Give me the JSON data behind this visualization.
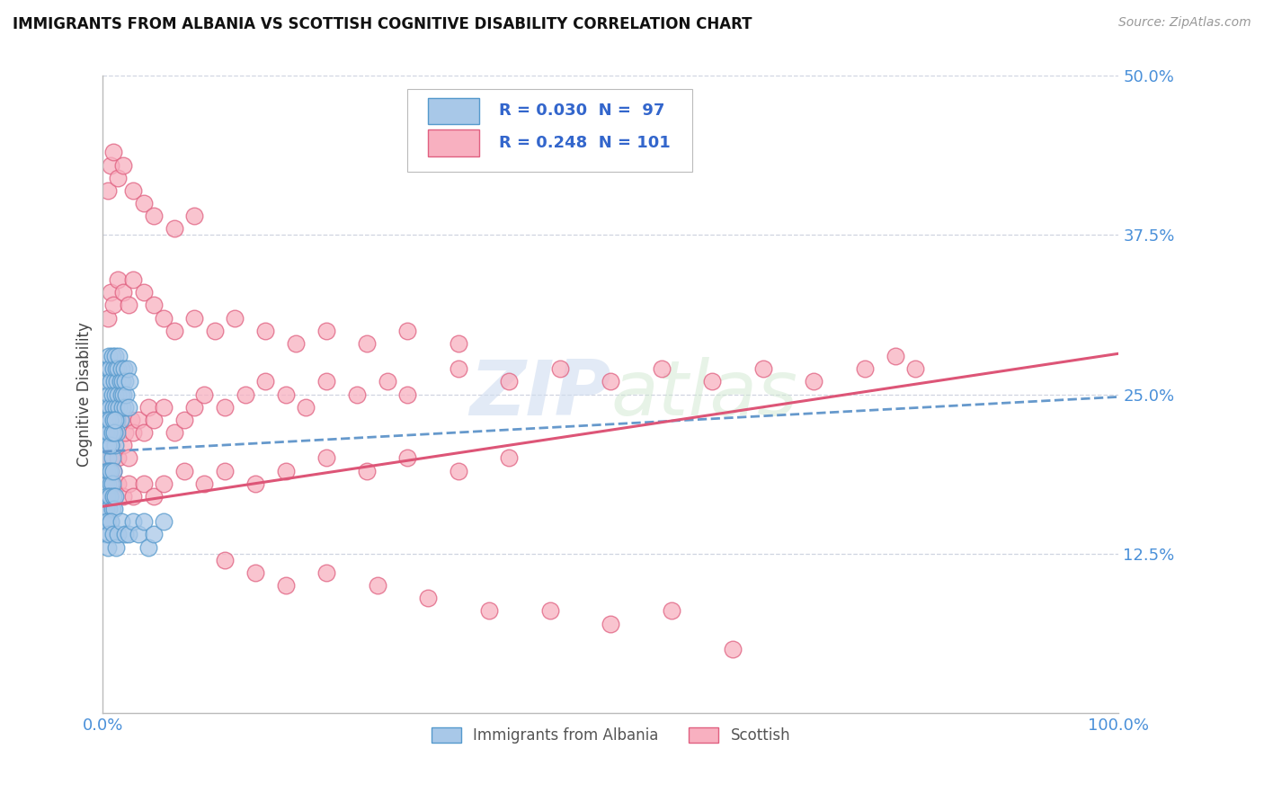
{
  "title": "IMMIGRANTS FROM ALBANIA VS SCOTTISH COGNITIVE DISABILITY CORRELATION CHART",
  "source": "Source: ZipAtlas.com",
  "ylabel": "Cognitive Disability",
  "xmin": 0.0,
  "xmax": 1.0,
  "ymin": 0.0,
  "ymax": 0.5,
  "yticks": [
    0.125,
    0.25,
    0.375,
    0.5
  ],
  "ytick_labels": [
    "12.5%",
    "25.0%",
    "37.5%",
    "50.0%"
  ],
  "xticks": [
    0.0,
    1.0
  ],
  "xtick_labels": [
    "0.0%",
    "100.0%"
  ],
  "tick_color": "#4a90d9",
  "grid_color": "#b0b8cc",
  "background_color": "#ffffff",
  "watermark_zip": "ZIP",
  "watermark_atlas": "atlas",
  "legend_R1": "R = 0.030",
  "legend_N1": "N =  97",
  "legend_R2": "R = 0.248",
  "legend_N2": "N = 101",
  "blue_face": "#a8c8e8",
  "blue_edge": "#5599cc",
  "pink_face": "#f8b0c0",
  "pink_edge": "#e06080",
  "blue_line_color": "#6699cc",
  "pink_line_color": "#dd5577",
  "legend_text_color": "#3366cc",
  "blue_line_x0": 0.0,
  "blue_line_x1": 1.0,
  "blue_line_y0": 0.205,
  "blue_line_y1": 0.248,
  "pink_line_x0": 0.0,
  "pink_line_x1": 1.0,
  "pink_line_y0": 0.162,
  "pink_line_y1": 0.282,
  "blue_scatter_x": [
    0.003,
    0.004,
    0.005,
    0.005,
    0.006,
    0.006,
    0.007,
    0.007,
    0.008,
    0.008,
    0.009,
    0.009,
    0.01,
    0.01,
    0.011,
    0.011,
    0.012,
    0.012,
    0.013,
    0.013,
    0.014,
    0.014,
    0.015,
    0.015,
    0.016,
    0.016,
    0.017,
    0.017,
    0.018,
    0.018,
    0.019,
    0.019,
    0.02,
    0.021,
    0.022,
    0.022,
    0.023,
    0.024,
    0.025,
    0.026,
    0.003,
    0.004,
    0.005,
    0.006,
    0.007,
    0.008,
    0.009,
    0.01,
    0.012,
    0.014,
    0.003,
    0.004,
    0.005,
    0.005,
    0.006,
    0.007,
    0.008,
    0.008,
    0.009,
    0.01,
    0.003,
    0.004,
    0.005,
    0.006,
    0.007,
    0.008,
    0.009,
    0.01,
    0.011,
    0.012,
    0.003,
    0.004,
    0.005,
    0.006,
    0.007,
    0.008,
    0.009,
    0.01,
    0.011,
    0.012,
    0.003,
    0.004,
    0.005,
    0.006,
    0.008,
    0.01,
    0.013,
    0.015,
    0.018,
    0.022,
    0.025,
    0.03,
    0.035,
    0.04,
    0.045,
    0.05,
    0.06
  ],
  "blue_scatter_y": [
    0.24,
    0.26,
    0.27,
    0.23,
    0.25,
    0.28,
    0.24,
    0.27,
    0.26,
    0.23,
    0.28,
    0.25,
    0.27,
    0.24,
    0.26,
    0.23,
    0.28,
    0.25,
    0.27,
    0.24,
    0.26,
    0.23,
    0.27,
    0.25,
    0.28,
    0.24,
    0.26,
    0.23,
    0.25,
    0.27,
    0.24,
    0.26,
    0.25,
    0.27,
    0.24,
    0.26,
    0.25,
    0.27,
    0.24,
    0.26,
    0.21,
    0.22,
    0.2,
    0.21,
    0.22,
    0.21,
    0.2,
    0.22,
    0.21,
    0.22,
    0.18,
    0.19,
    0.17,
    0.18,
    0.19,
    0.17,
    0.18,
    0.19,
    0.18,
    0.19,
    0.22,
    0.23,
    0.21,
    0.22,
    0.23,
    0.21,
    0.22,
    0.23,
    0.22,
    0.23,
    0.16,
    0.17,
    0.15,
    0.16,
    0.17,
    0.15,
    0.16,
    0.17,
    0.16,
    0.17,
    0.14,
    0.15,
    0.13,
    0.14,
    0.15,
    0.14,
    0.13,
    0.14,
    0.15,
    0.14,
    0.14,
    0.15,
    0.14,
    0.15,
    0.13,
    0.14,
    0.15
  ],
  "pink_scatter_x": [
    0.005,
    0.008,
    0.01,
    0.012,
    0.015,
    0.018,
    0.02,
    0.022,
    0.025,
    0.028,
    0.03,
    0.035,
    0.04,
    0.045,
    0.05,
    0.06,
    0.07,
    0.08,
    0.09,
    0.1,
    0.12,
    0.14,
    0.16,
    0.18,
    0.2,
    0.22,
    0.25,
    0.28,
    0.3,
    0.35,
    0.4,
    0.45,
    0.5,
    0.55,
    0.6,
    0.65,
    0.7,
    0.75,
    0.78,
    0.8,
    0.005,
    0.008,
    0.01,
    0.015,
    0.02,
    0.025,
    0.03,
    0.04,
    0.05,
    0.06,
    0.08,
    0.1,
    0.12,
    0.15,
    0.18,
    0.22,
    0.26,
    0.3,
    0.35,
    0.4,
    0.005,
    0.008,
    0.01,
    0.015,
    0.02,
    0.025,
    0.03,
    0.04,
    0.05,
    0.06,
    0.07,
    0.09,
    0.11,
    0.13,
    0.16,
    0.19,
    0.22,
    0.26,
    0.3,
    0.35,
    0.005,
    0.008,
    0.01,
    0.015,
    0.02,
    0.03,
    0.04,
    0.05,
    0.07,
    0.09,
    0.12,
    0.15,
    0.18,
    0.22,
    0.27,
    0.32,
    0.38,
    0.44,
    0.5,
    0.56,
    0.62
  ],
  "pink_scatter_y": [
    0.22,
    0.2,
    0.24,
    0.22,
    0.2,
    0.23,
    0.21,
    0.22,
    0.2,
    0.23,
    0.22,
    0.23,
    0.22,
    0.24,
    0.23,
    0.24,
    0.22,
    0.23,
    0.24,
    0.25,
    0.24,
    0.25,
    0.26,
    0.25,
    0.24,
    0.26,
    0.25,
    0.26,
    0.25,
    0.27,
    0.26,
    0.27,
    0.26,
    0.27,
    0.26,
    0.27,
    0.26,
    0.27,
    0.28,
    0.27,
    0.18,
    0.17,
    0.19,
    0.18,
    0.17,
    0.18,
    0.17,
    0.18,
    0.17,
    0.18,
    0.19,
    0.18,
    0.19,
    0.18,
    0.19,
    0.2,
    0.19,
    0.2,
    0.19,
    0.2,
    0.31,
    0.33,
    0.32,
    0.34,
    0.33,
    0.32,
    0.34,
    0.33,
    0.32,
    0.31,
    0.3,
    0.31,
    0.3,
    0.31,
    0.3,
    0.29,
    0.3,
    0.29,
    0.3,
    0.29,
    0.41,
    0.43,
    0.44,
    0.42,
    0.43,
    0.41,
    0.4,
    0.39,
    0.38,
    0.39,
    0.12,
    0.11,
    0.1,
    0.11,
    0.1,
    0.09,
    0.08,
    0.08,
    0.07,
    0.08,
    0.05
  ]
}
